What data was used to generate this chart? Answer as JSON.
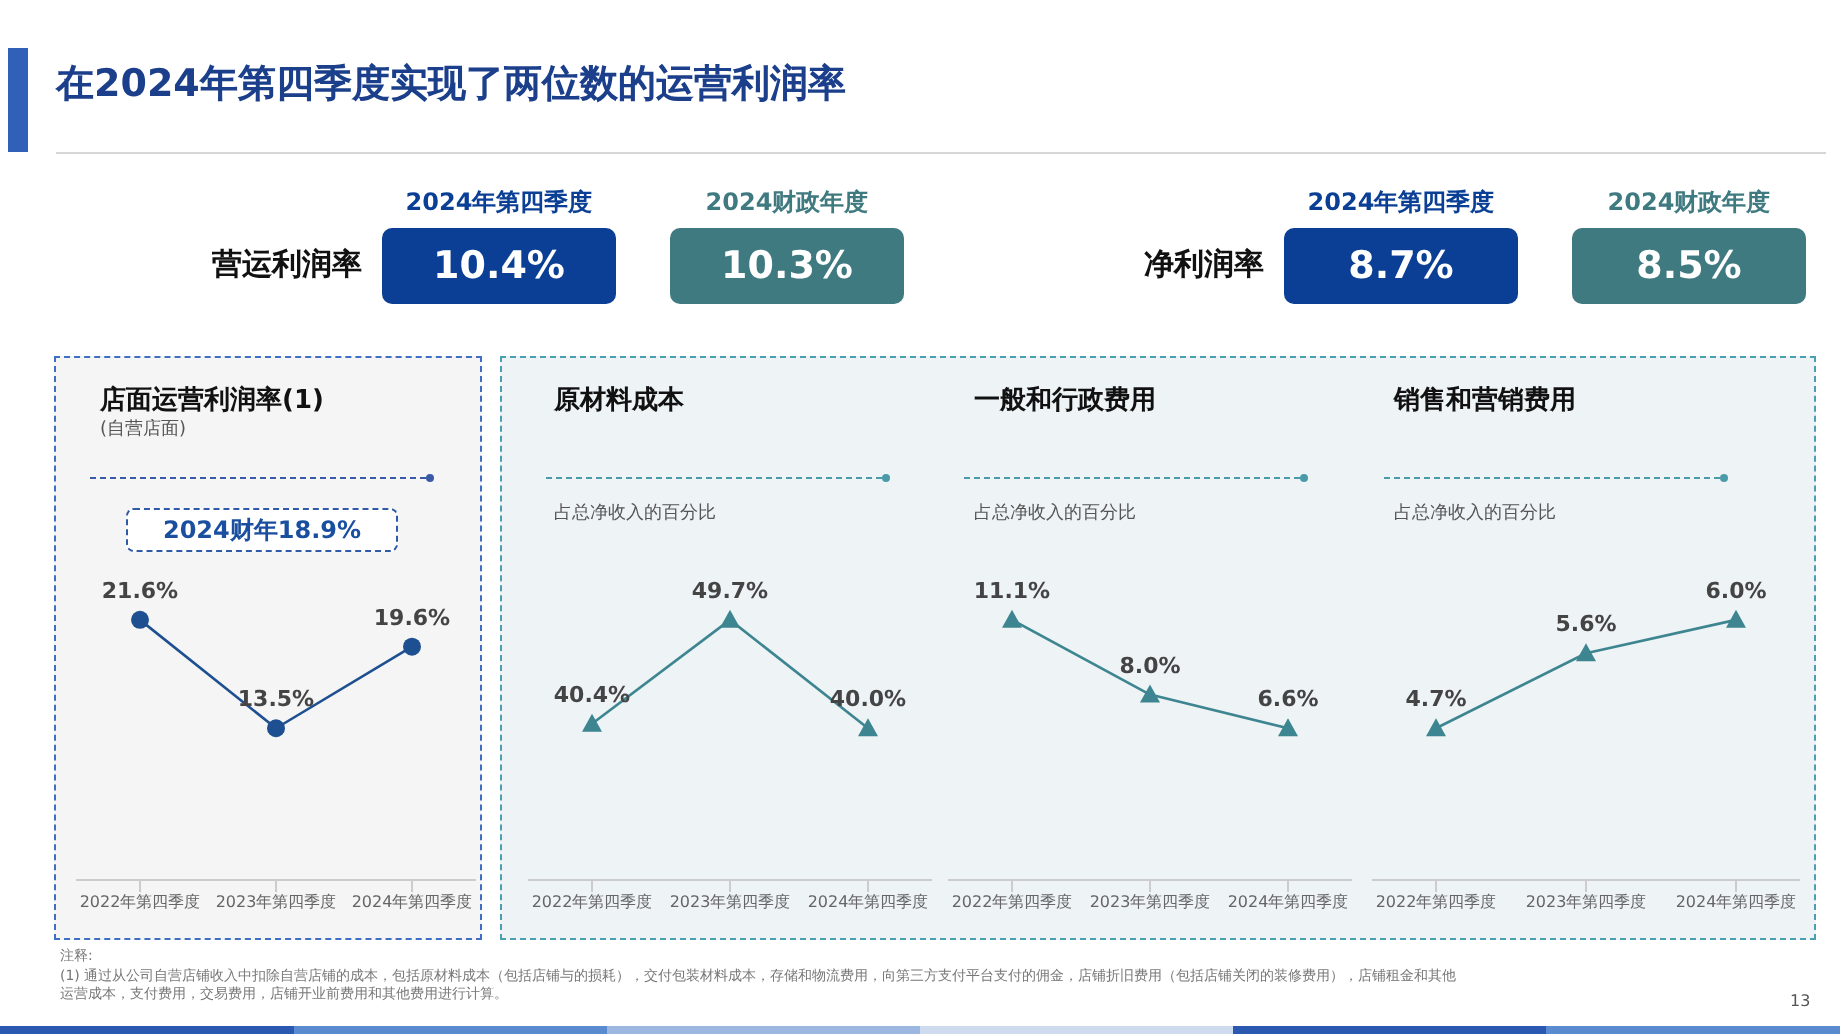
{
  "chart_data": [
    {
      "type": "other",
      "title": "在2024年第四季度实现了两位数的运营利润率",
      "categories": [
        "2024年第四季度",
        "2024财政年度"
      ],
      "series": [
        {
          "name": "营运利润率",
          "values": [
            10.4,
            10.3
          ],
          "value_labels": [
            "10.4%",
            "10.3%"
          ],
          "colors": [
            "#0b3f95",
            "#3f7a80"
          ]
        },
        {
          "name": "净利润率",
          "values": [
            8.7,
            8.5
          ],
          "value_labels": [
            "8.7%",
            "8.5%"
          ],
          "colors": [
            "#0b3f95",
            "#3f7a80"
          ]
        }
      ],
      "annotations": [
        "注释:",
        "(1) 通过从公司自营店铺收入中扣除自营店铺的成本，包括原材料成本（包括店铺与的损耗），交付包装材料成本，存储和物流费用，向第三方支付平台支付的佣金，店铺折旧费用（包括店铺关闭的装修费用），店铺租金和其他运营成本，支付费用，交易费用，店铺开业前费用和其他费用进行计算。",
        "13"
      ]
    },
    {
      "type": "line",
      "title": "店面运营利润率(1)",
      "subtitle": "(自营店面)",
      "categories": [
        "2022年第四季度",
        "2023年第四季度",
        "2024年第四季度"
      ],
      "series": [
        {
          "color": "#1d4f91",
          "values": [
            21.6,
            13.5,
            19.6
          ],
          "value_labels": [
            "21.6%",
            "13.5%",
            "19.6%"
          ]
        }
      ],
      "marker": "circle",
      "tick_labels": "x",
      "annotations": [
        "2024财年18.9%"
      ]
    },
    {
      "type": "line",
      "title": "原材料成本",
      "subtitle": "占总净收入的百分比",
      "categories": [
        "2022年第四季度",
        "2023年第四季度",
        "2024年第四季度"
      ],
      "series": [
        {
          "color": "#3d8590",
          "values": [
            40.4,
            49.7,
            40.0
          ],
          "value_labels": [
            "40.4%",
            "49.7%",
            "40.0%"
          ]
        }
      ],
      "marker": "triangle",
      "tick_labels": "x"
    },
    {
      "type": "line",
      "title": "一般和行政费用",
      "subtitle": "占总净收入的百分比",
      "categories": [
        "2022年第四季度",
        "2023年第四季度",
        "2024年第四季度"
      ],
      "series": [
        {
          "color": "#3d8590",
          "values": [
            11.1,
            8.0,
            6.6
          ],
          "value_labels": [
            "11.1%",
            "8.0%",
            "6.6%"
          ]
        }
      ],
      "marker": "triangle",
      "tick_labels": "x"
    },
    {
      "type": "line",
      "title": "销售和营销费用",
      "subtitle": "占总净收入的百分比",
      "categories": [
        "2022年第四季度",
        "2023年第四季度",
        "2024年第四季度"
      ],
      "series": [
        {
          "color": "#3d8590",
          "values": [
            4.7,
            5.6,
            6.0
          ],
          "value_labels": [
            "4.7%",
            "5.6%",
            "6.0%"
          ]
        }
      ],
      "marker": "triangle",
      "tick_labels": "x"
    }
  ]
}
